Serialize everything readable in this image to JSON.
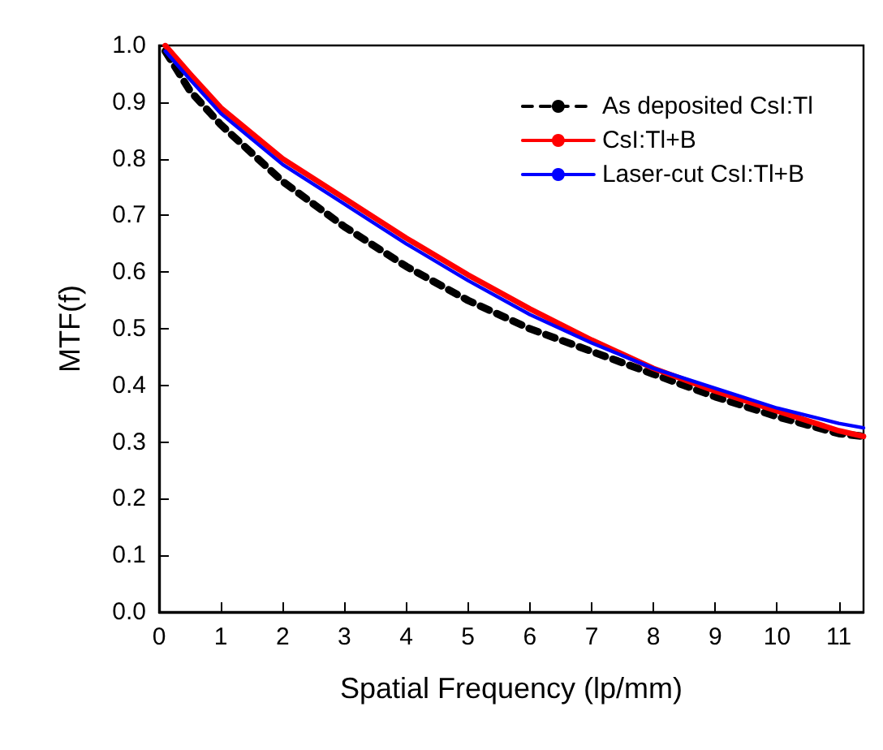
{
  "chart_data": {
    "type": "line",
    "xlabel": "Spatial Frequency (lp/mm)",
    "ylabel": "MTF(f)",
    "xlim": [
      0,
      11.4
    ],
    "xticks": [
      0,
      1,
      2,
      3,
      4,
      5,
      6,
      7,
      8,
      9,
      10,
      11
    ],
    "ylim": [
      0,
      1.0
    ],
    "yticks": [
      {
        "value": 0,
        "label": "0.0"
      },
      0.1,
      0.2,
      0.3,
      0.4,
      0.5,
      0.6,
      0.7,
      0.8,
      0.9,
      {
        "value": 1,
        "label": "1.0"
      }
    ],
    "grid": false,
    "legend": "top right",
    "marker": "none",
    "series": [
      {
        "name": "As deposited CsI:Tl",
        "color": "#000000",
        "line_style": "dashed",
        "x": [
          0.1,
          0.5,
          1,
          2,
          3,
          4,
          5,
          6,
          7,
          8,
          9,
          10,
          11,
          11.4
        ],
        "values": [
          0.99,
          0.92,
          0.86,
          0.76,
          0.68,
          0.61,
          0.55,
          0.5,
          0.46,
          0.42,
          0.38,
          0.345,
          0.315,
          0.31
        ]
      },
      {
        "name": "CsI:Tl+B",
        "color": "#ff0000",
        "line_style": "solid",
        "x": [
          0.1,
          0.5,
          1,
          2,
          3,
          4,
          5,
          6,
          7,
          8,
          9,
          10,
          11,
          11.4
        ],
        "values": [
          1.0,
          0.95,
          0.89,
          0.8,
          0.73,
          0.66,
          0.595,
          0.535,
          0.48,
          0.43,
          0.39,
          0.355,
          0.32,
          0.31
        ]
      },
      {
        "name": "Laser-cut CsI:Tl+B",
        "color": "#0000ff",
        "line_style": "solid",
        "x": [
          0.1,
          0.5,
          1,
          2,
          3,
          4,
          5,
          6,
          7,
          8,
          9,
          10,
          11,
          11.4
        ],
        "values": [
          0.99,
          0.94,
          0.88,
          0.79,
          0.72,
          0.65,
          0.585,
          0.525,
          0.475,
          0.43,
          0.395,
          0.36,
          0.333,
          0.325
        ]
      }
    ]
  }
}
